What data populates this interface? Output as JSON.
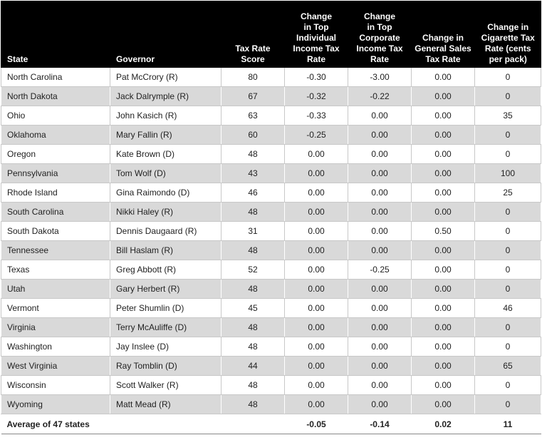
{
  "table": {
    "header": [
      [
        "State"
      ],
      [
        "Governor"
      ],
      [
        "Tax Rate",
        "Score"
      ],
      [
        "Change",
        "in Top",
        "Individual",
        "Income Tax",
        "Rate"
      ],
      [
        "Change",
        "in Top",
        "Corporate",
        "Income Tax",
        "Rate"
      ],
      [
        "Change in",
        "General Sales",
        "Tax Rate"
      ],
      [
        "Change in",
        "Cigarette Tax",
        "Rate (cents",
        "per pack)"
      ]
    ],
    "rows": [
      [
        "North Carolina",
        "Pat McCrory (R)",
        "80",
        "-0.30",
        "-3.00",
        "0.00",
        "0"
      ],
      [
        "North Dakota",
        "Jack Dalrymple (R)",
        "67",
        "-0.32",
        "-0.22",
        "0.00",
        "0"
      ],
      [
        "Ohio",
        "John Kasich (R)",
        "63",
        "-0.33",
        "0.00",
        "0.00",
        "35"
      ],
      [
        "Oklahoma",
        "Mary Fallin (R)",
        "60",
        "-0.25",
        "0.00",
        "0.00",
        "0"
      ],
      [
        "Oregon",
        "Kate Brown (D)",
        "48",
        "0.00",
        "0.00",
        "0.00",
        "0"
      ],
      [
        "Pennsylvania",
        "Tom Wolf (D)",
        "43",
        "0.00",
        "0.00",
        "0.00",
        "100"
      ],
      [
        "Rhode Island",
        "Gina Raimondo (D)",
        "46",
        "0.00",
        "0.00",
        "0.00",
        "25"
      ],
      [
        "South Carolina",
        "Nikki Haley (R)",
        "48",
        "0.00",
        "0.00",
        "0.00",
        "0"
      ],
      [
        "South Dakota",
        "Dennis Daugaard (R)",
        "31",
        "0.00",
        "0.00",
        "0.50",
        "0"
      ],
      [
        "Tennessee",
        "Bill Haslam (R)",
        "48",
        "0.00",
        "0.00",
        "0.00",
        "0"
      ],
      [
        "Texas",
        "Greg Abbott (R)",
        "52",
        "0.00",
        "-0.25",
        "0.00",
        "0"
      ],
      [
        "Utah",
        "Gary Herbert (R)",
        "48",
        "0.00",
        "0.00",
        "0.00",
        "0"
      ],
      [
        "Vermont",
        "Peter Shumlin (D)",
        "45",
        "0.00",
        "0.00",
        "0.00",
        "46"
      ],
      [
        "Virginia",
        "Terry McAuliffe (D)",
        "48",
        "0.00",
        "0.00",
        "0.00",
        "0"
      ],
      [
        "Washington",
        "Jay Inslee (D)",
        "48",
        "0.00",
        "0.00",
        "0.00",
        "0"
      ],
      [
        "West Virginia",
        "Ray Tomblin (D)",
        "44",
        "0.00",
        "0.00",
        "0.00",
        "65"
      ],
      [
        "Wisconsin",
        "Scott Walker (R)",
        "48",
        "0.00",
        "0.00",
        "0.00",
        "0"
      ],
      [
        "Wyoming",
        "Matt Mead (R)",
        "48",
        "0.00",
        "0.00",
        "0.00",
        "0"
      ]
    ],
    "footer": [
      "Average of 47 states",
      null,
      null,
      "-0.05",
      "-0.14",
      "0.02",
      "11"
    ]
  }
}
